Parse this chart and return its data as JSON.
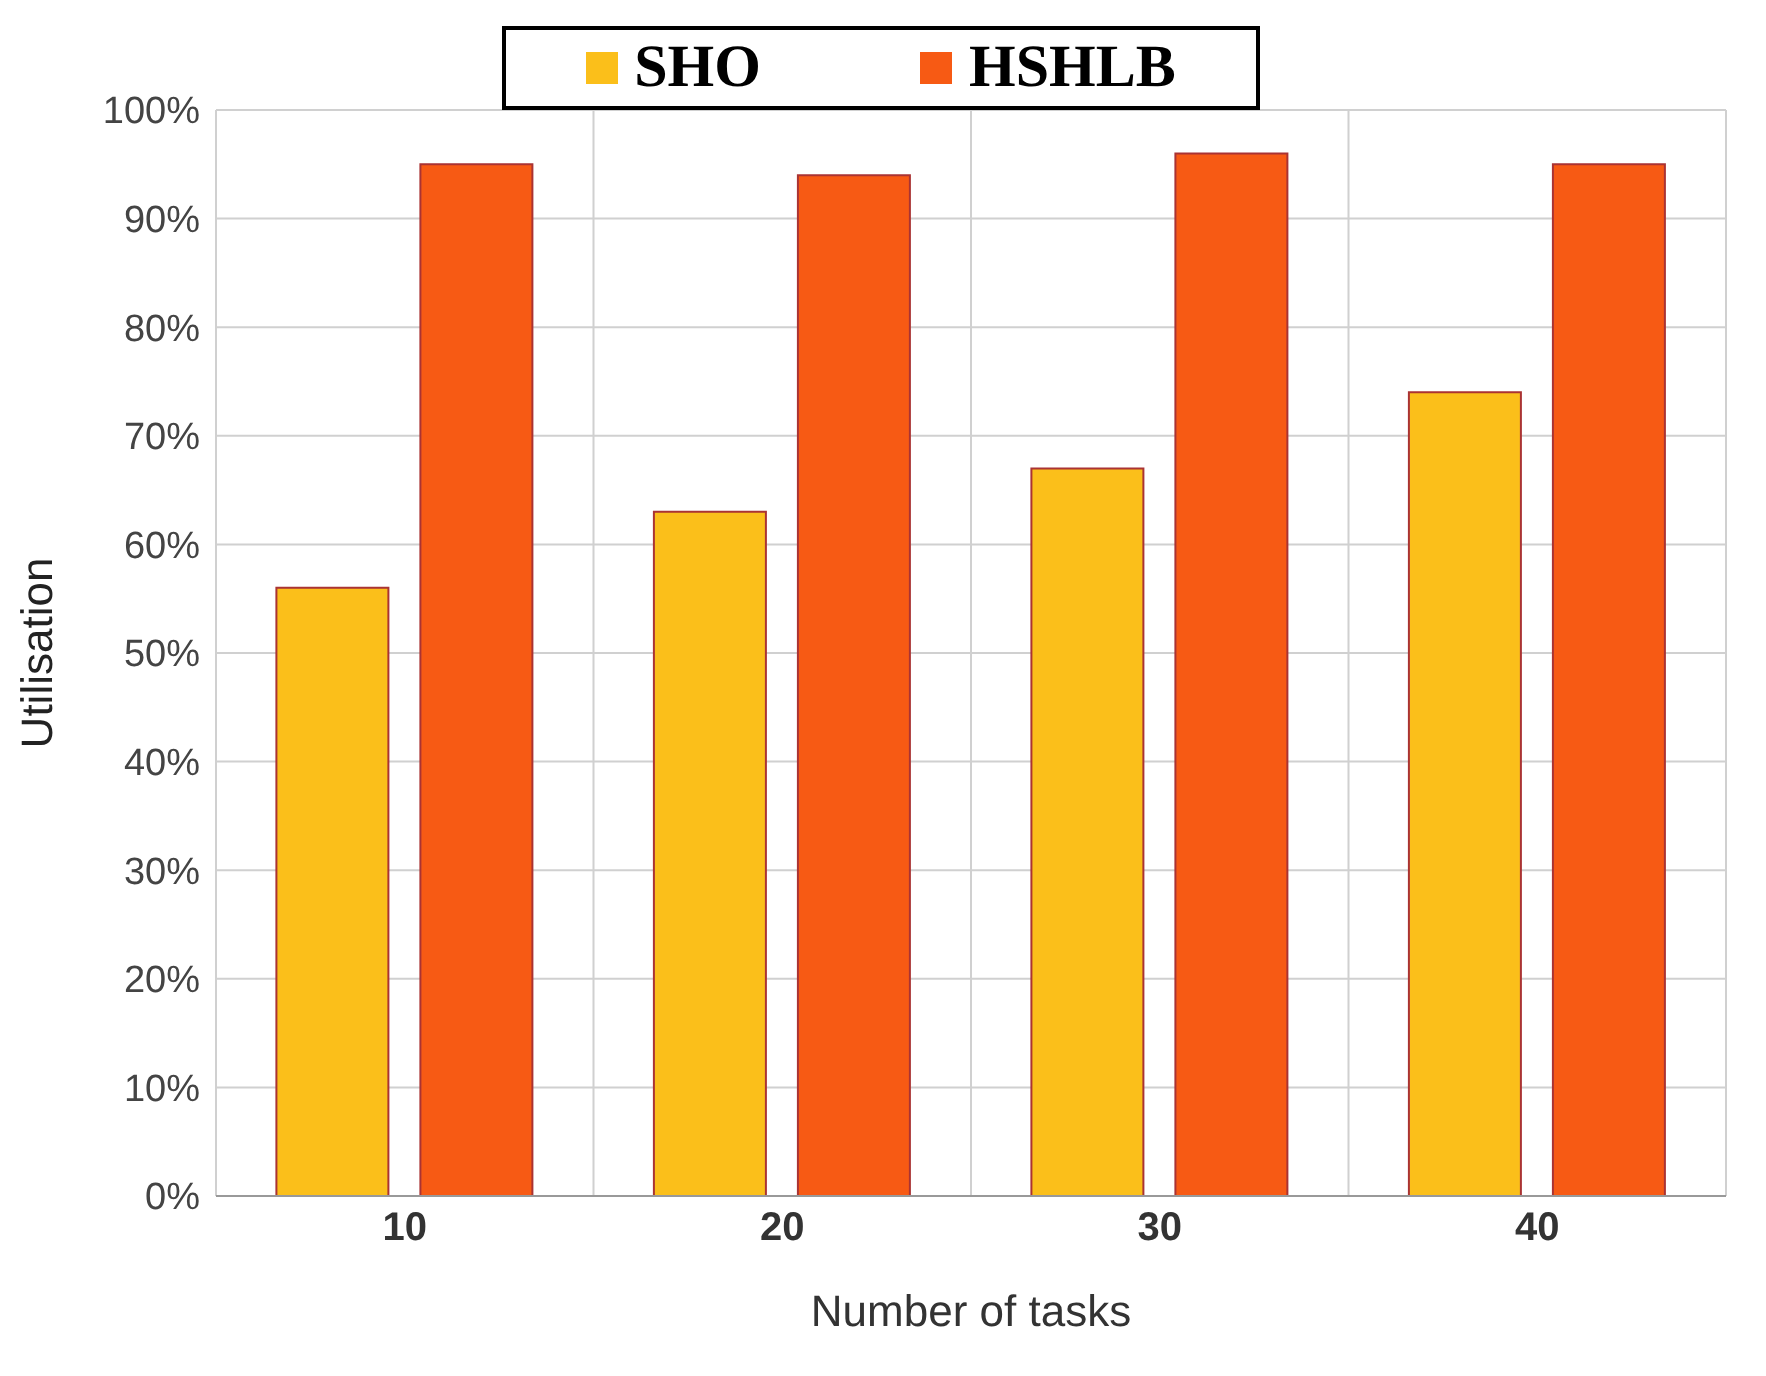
{
  "chart_data": {
    "type": "bar",
    "xlabel": "Number of tasks",
    "ylabel": "Utilisation",
    "categories": [
      "10",
      "20",
      "30",
      "40"
    ],
    "series": [
      {
        "name": "SHO",
        "color": "#fbbf1a",
        "values": [
          56,
          63,
          67,
          74
        ]
      },
      {
        "name": "HSHLB",
        "color": "#f75a14",
        "values": [
          95,
          94,
          96,
          95
        ]
      }
    ],
    "ylim": [
      0,
      100
    ],
    "yticks": [
      {
        "value": 0,
        "label": "0%"
      },
      {
        "value": 10,
        "label": "10%"
      },
      {
        "value": 20,
        "label": "20%"
      },
      {
        "value": 30,
        "label": "30%"
      },
      {
        "value": 40,
        "label": "40%"
      },
      {
        "value": 50,
        "label": "50%"
      },
      {
        "value": 60,
        "label": "60%"
      },
      {
        "value": 70,
        "label": "70%"
      },
      {
        "value": 80,
        "label": "80%"
      },
      {
        "value": 90,
        "label": "90%"
      },
      {
        "value": 100,
        "label": "100%"
      }
    ],
    "grid": true,
    "legend": "top"
  }
}
